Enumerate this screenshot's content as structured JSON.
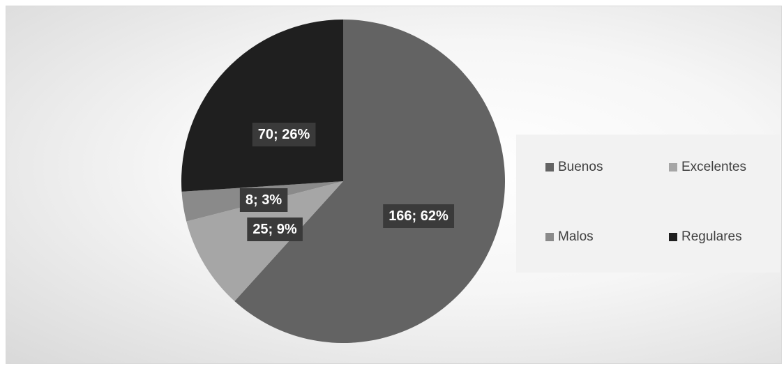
{
  "chart_data": {
    "type": "pie",
    "title": "",
    "categories": [
      "Buenos",
      "Excelentes",
      "Malos",
      "Regulares"
    ],
    "values": [
      166,
      25,
      8,
      70
    ],
    "percent_labels": [
      "62%",
      "9%",
      "3%",
      "26%"
    ],
    "data_labels": [
      "166; 62%",
      "25; 9%",
      "8; 3%",
      "70; 26%"
    ],
    "colors": [
      "#636363",
      "#a6a6a6",
      "#8a8a8a",
      "#1f1f1f"
    ],
    "legend": {
      "placement": "right",
      "items": [
        {
          "label": "Buenos",
          "color": "#636363"
        },
        {
          "label": "Excelentes",
          "color": "#a6a6a6"
        },
        {
          "label": "Malos",
          "color": "#8a8a8a"
        },
        {
          "label": "Regulares",
          "color": "#1f1f1f"
        }
      ]
    }
  }
}
